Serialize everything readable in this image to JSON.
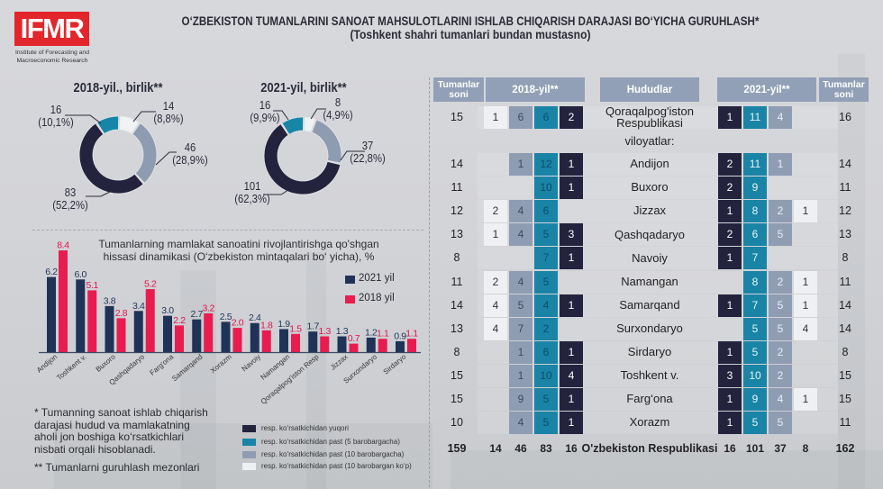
{
  "header": {
    "logo": {
      "text": "IFMR",
      "subtitle_line1": "Institute of Forecasting and",
      "subtitle_line2": "Macroeconomic Research"
    },
    "title": "O‘ZBEKISTON TUMANLARINI SANOAT MAHSULOTLARINI ISHLAB CHIQARISH DARAJASI BO‘YICHA GURUHLASH*",
    "subtitle": "(Toshkent shahri tumanlari bundan mustasno)"
  },
  "colors": {
    "dark": "#23233e",
    "teal": "#1a84a6",
    "gray": "#8f9db3",
    "white": "#eef0f3",
    "header": "#91a0b6",
    "bar_2021": "#1f3357",
    "bar_2018": "#e91c4f",
    "brand_red": "#e3262b"
  },
  "chart_data": [
    {
      "type": "pie",
      "variant": "donut",
      "title": "2018-yil., birlik**",
      "total": 159,
      "slices": [
        {
          "color_key": "white",
          "label": "resp. ko‘rsatkichidan past (10 barobargan ko‘p)",
          "value": 14,
          "percent": 8.8,
          "value_label": "14",
          "percent_label": "(8,8%)"
        },
        {
          "color_key": "gray",
          "label": "resp. ko‘rsatkichidan past (10 barobargacha)",
          "value": 46,
          "percent": 28.9,
          "value_label": "46",
          "percent_label": "(28,9%)"
        },
        {
          "color_key": "dark",
          "label": "resp. ko‘rsatkichidan yuqori",
          "value": 83,
          "percent": 52.2,
          "value_label": "83",
          "percent_label": "(52,2%)"
        },
        {
          "color_key": "teal",
          "label": "resp. ko‘rsatkichidan past (5 barobargacha)",
          "value": 16,
          "percent": 10.1,
          "value_label": "16",
          "percent_label": "(10,1%)"
        }
      ]
    },
    {
      "type": "pie",
      "variant": "donut",
      "title": "2021-yil, birlik**",
      "total": 162,
      "slices": [
        {
          "color_key": "white",
          "label": "resp. ko‘rsatkichidan past (10 barobargan ko‘p)",
          "value": 8,
          "percent": 4.9,
          "value_label": "8",
          "percent_label": "(4,9%)"
        },
        {
          "color_key": "gray",
          "label": "resp. ko‘rsatkichidan past (10 barobargacha)",
          "value": 37,
          "percent": 22.8,
          "value_label": "37",
          "percent_label": "(22,8%)"
        },
        {
          "color_key": "dark",
          "label": "resp. ko‘rsatkichidan yuqori",
          "value": 101,
          "percent": 62.3,
          "value_label": "101",
          "percent_label": "(62,3%)"
        },
        {
          "color_key": "teal",
          "label": "resp. ko‘rsatkichidan past (5 barobargacha)",
          "value": 16,
          "percent": 9.9,
          "value_label": "16",
          "percent_label": "(9,9%)"
        }
      ]
    },
    {
      "type": "bar",
      "title_lines": [
        "Tumanlarning mamlakat sanoatini rivojlantirishga qo'shgan",
        "hissasi dinamikasi (O‘zbekiston mintaqalari bo‘ yicha), %"
      ],
      "xlabel": "",
      "ylabel": "%",
      "ylim": [
        0,
        9
      ],
      "grid": false,
      "legend_position": "top-right",
      "categories": [
        "Andijon",
        "Toshkent v.",
        "Buxoro",
        "Qashqadaryo",
        "Farg'ona",
        "Samarqand",
        "Xorazm",
        "Navoiy",
        "Namangan",
        "Qoraqalpog'iston Resp",
        "Jizzax",
        "Surxondaryo",
        "Sirdaryo"
      ],
      "series": [
        {
          "name": "2021 yil",
          "color_key": "bar_2021",
          "values": [
            6.2,
            6.0,
            3.8,
            3.4,
            3.0,
            2.7,
            2.5,
            2.4,
            1.9,
            1.7,
            1.3,
            1.2,
            0.9
          ]
        },
        {
          "name": "2018 yil",
          "color_key": "bar_2018",
          "values": [
            8.4,
            5.1,
            2.8,
            5.2,
            2.2,
            3.2,
            2.0,
            1.8,
            1.5,
            1.3,
            0.7,
            1.1,
            1.1
          ]
        }
      ]
    }
  ],
  "table": {
    "headers": {
      "count_left": "Tumanlar soni",
      "year_2018": "2018-yil**",
      "regions": "Hududlar",
      "year_2021": "2021-yil**",
      "count_right": "Tumanlar soni"
    },
    "cells_2018_order": [
      "white",
      "gray",
      "teal",
      "dark"
    ],
    "cells_2021_order": [
      "dark",
      "teal",
      "gray",
      "white"
    ],
    "group_label": "viloyatlar:",
    "rows": [
      {
        "region": "Qoraqalpog'iston Respublikasi",
        "count_2018": 15,
        "cells_2018": [
          1,
          6,
          6,
          2
        ],
        "cells_2021": [
          1,
          11,
          4,
          null
        ],
        "count_2021": 16
      },
      {
        "region": "Andijon",
        "count_2018": 14,
        "cells_2018": [
          null,
          1,
          12,
          1
        ],
        "cells_2021": [
          2,
          11,
          1,
          null
        ],
        "count_2021": 14
      },
      {
        "region": "Buxoro",
        "count_2018": 11,
        "cells_2018": [
          null,
          null,
          10,
          1
        ],
        "cells_2021": [
          2,
          9,
          null,
          null
        ],
        "count_2021": 11
      },
      {
        "region": "Jizzax",
        "count_2018": 12,
        "cells_2018": [
          2,
          4,
          6,
          null
        ],
        "cells_2021": [
          1,
          8,
          2,
          1
        ],
        "count_2021": 12
      },
      {
        "region": "Qashqadaryo",
        "count_2018": 13,
        "cells_2018": [
          1,
          4,
          5,
          3
        ],
        "cells_2021": [
          2,
          6,
          5,
          null
        ],
        "count_2021": 13
      },
      {
        "region": "Navoiy",
        "count_2018": 8,
        "cells_2018": [
          null,
          null,
          7,
          1
        ],
        "cells_2021": [
          1,
          7,
          null,
          null
        ],
        "count_2021": 8
      },
      {
        "region": "Namangan",
        "count_2018": 11,
        "cells_2018": [
          2,
          4,
          5,
          null
        ],
        "cells_2021": [
          null,
          8,
          2,
          1
        ],
        "count_2021": 11
      },
      {
        "region": "Samarqand",
        "count_2018": 14,
        "cells_2018": [
          4,
          5,
          4,
          1
        ],
        "cells_2021": [
          1,
          7,
          5,
          1
        ],
        "count_2021": 14
      },
      {
        "region": "Surxondaryo",
        "count_2018": 13,
        "cells_2018": [
          4,
          7,
          2,
          null
        ],
        "cells_2021": [
          null,
          5,
          5,
          4
        ],
        "count_2021": 14
      },
      {
        "region": "Sirdaryo",
        "count_2018": 8,
        "cells_2018": [
          null,
          1,
          6,
          1
        ],
        "cells_2021": [
          1,
          5,
          2,
          null
        ],
        "count_2021": 8
      },
      {
        "region": "Toshkent v.",
        "count_2018": 15,
        "cells_2018": [
          null,
          1,
          10,
          4
        ],
        "cells_2021": [
          3,
          10,
          2,
          null
        ],
        "count_2021": 15
      },
      {
        "region": "Farg‘ona",
        "count_2018": 15,
        "cells_2018": [
          null,
          9,
          5,
          1
        ],
        "cells_2021": [
          1,
          9,
          4,
          1
        ],
        "count_2021": 15
      },
      {
        "region": "Xorazm",
        "count_2018": 10,
        "cells_2018": [
          null,
          4,
          5,
          1
        ],
        "cells_2021": [
          1,
          5,
          5,
          null
        ],
        "count_2021": 11
      }
    ],
    "total": {
      "region": "O'zbekiston Respublikasi",
      "count_2018": 159,
      "cells_2018": [
        14,
        46,
        83,
        16
      ],
      "cells_2021": [
        16,
        101,
        37,
        8
      ],
      "count_2021": 162
    }
  },
  "legend": {
    "items": [
      {
        "color_key": "dark",
        "label": "resp. ko‘rsatkichidan yuqori"
      },
      {
        "color_key": "teal",
        "label": "resp. ko‘rsatkichidan past (5 barobargacha)"
      },
      {
        "color_key": "gray",
        "label": "resp. ko‘rsatkichidan past (10 barobargacha)"
      },
      {
        "color_key": "white",
        "label": "resp. ko‘rsatkichidan past (10 barobargan ko‘p)"
      }
    ]
  },
  "footnotes": {
    "note1_lines": [
      "* Tumanning sanoat ishlab chiqarish",
      "darajasi hudud va mamlakatning",
      "aholi jon boshiga ko‘rsatkichlari",
      "nisbati orqali hisoblanadi."
    ],
    "note2": "** Tumanlarni guruhlash mezonlari"
  }
}
